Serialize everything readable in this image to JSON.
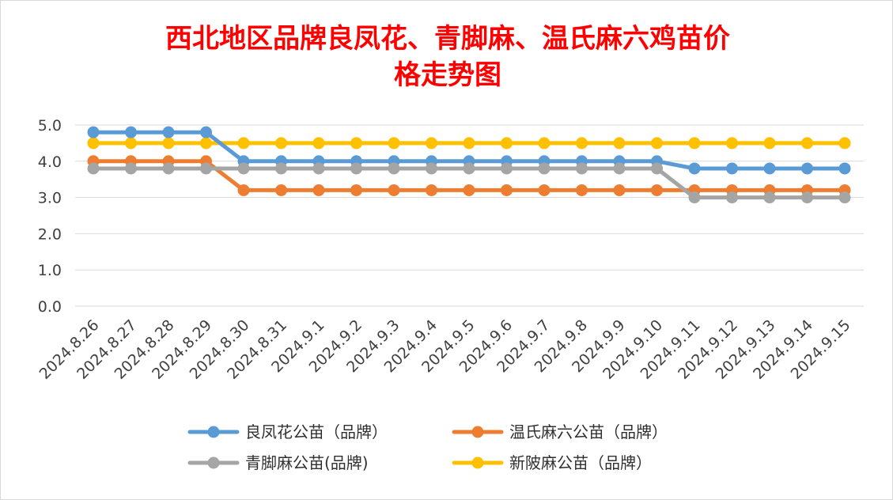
{
  "chart_data": {
    "type": "line",
    "title_lines": [
      "西北地区品牌良凤花、青脚麻、温氏麻六鸡苗价",
      "格走势图"
    ],
    "categories": [
      "2024.8.26",
      "2024.8.27",
      "2024.8.28",
      "2024.8.29",
      "2024.8.30",
      "2024.8.31",
      "2024.9.1",
      "2024.9.2",
      "2024.9.3",
      "2024.9.4",
      "2024.9.5",
      "2024.9.6",
      "2024.9.7",
      "2024.9.8",
      "2024.9.9",
      "2024.9.10",
      "2024.9.11",
      "2024.9.12",
      "2024.9.13",
      "2024.9.14",
      "2024.9.15"
    ],
    "ylim": [
      0,
      5
    ],
    "yticks": [
      "0.0",
      "1.0",
      "2.0",
      "3.0",
      "4.0",
      "5.0"
    ],
    "grid": true,
    "legend_position": "bottom",
    "series": [
      {
        "name": "良凤花公苗（品牌）",
        "color": "#5b9bd5",
        "values": [
          4.8,
          4.8,
          4.8,
          4.8,
          4.0,
          4.0,
          4.0,
          4.0,
          4.0,
          4.0,
          4.0,
          4.0,
          4.0,
          4.0,
          4.0,
          4.0,
          3.8,
          3.8,
          3.8,
          3.8,
          3.8
        ]
      },
      {
        "name": "温氏麻六公苗（品牌）",
        "color": "#ed7d31",
        "values": [
          4.0,
          4.0,
          4.0,
          4.0,
          3.2,
          3.2,
          3.2,
          3.2,
          3.2,
          3.2,
          3.2,
          3.2,
          3.2,
          3.2,
          3.2,
          3.2,
          3.2,
          3.2,
          3.2,
          3.2,
          3.2
        ]
      },
      {
        "name": "青脚麻公苗(品牌)",
        "color": "#a5a5a5",
        "values": [
          3.8,
          3.8,
          3.8,
          3.8,
          3.8,
          3.8,
          3.8,
          3.8,
          3.8,
          3.8,
          3.8,
          3.8,
          3.8,
          3.8,
          3.8,
          3.8,
          3.0,
          3.0,
          3.0,
          3.0,
          3.0
        ]
      },
      {
        "name": "新陂麻公苗（品牌）",
        "color": "#ffc000",
        "values": [
          4.5,
          4.5,
          4.5,
          4.5,
          4.5,
          4.5,
          4.5,
          4.5,
          4.5,
          4.5,
          4.5,
          4.5,
          4.5,
          4.5,
          4.5,
          4.5,
          4.5,
          4.5,
          4.5,
          4.5,
          4.5
        ]
      }
    ],
    "draw_order": [
      3,
      0,
      1,
      2
    ]
  }
}
